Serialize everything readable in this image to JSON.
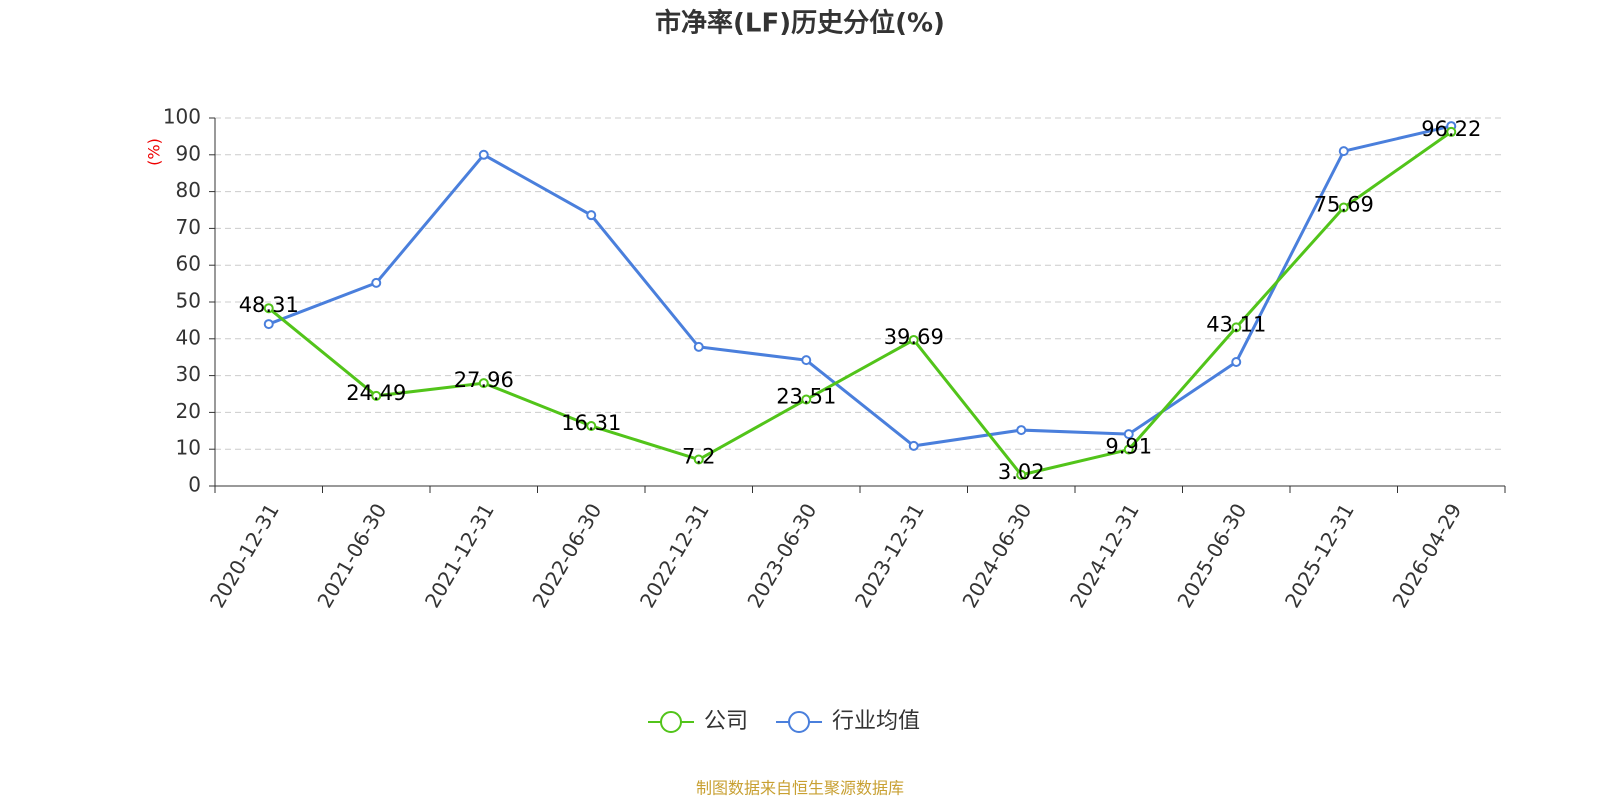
{
  "chart_data": {
    "type": "line",
    "title": "市净率(LF)历史分位(%)",
    "y_label": "(%)",
    "categories": [
      "2020-12-31",
      "2021-06-30",
      "2021-12-31",
      "2022-06-30",
      "2022-12-31",
      "2023-06-30",
      "2023-12-31",
      "2024-06-30",
      "2024-12-31",
      "2025-06-30",
      "2025-12-31",
      "2026-04-29"
    ],
    "series": [
      {
        "name": "公司",
        "color": "#52c41a",
        "show_labels": true,
        "values": [
          48.31,
          24.49,
          27.96,
          16.31,
          7.2,
          23.51,
          39.69,
          3.02,
          9.91,
          43.11,
          75.69,
          96.22
        ]
      },
      {
        "name": "行业均值",
        "color": "#4a7fdc",
        "show_labels": false,
        "values": [
          44.0,
          55.2,
          90.0,
          73.6,
          37.8,
          34.2,
          10.9,
          15.2,
          14.1,
          33.7,
          91.0,
          97.8
        ]
      }
    ],
    "ylim": [
      0,
      100
    ],
    "yticks": [
      0,
      10,
      20,
      30,
      40,
      50,
      60,
      70,
      80,
      90,
      100
    ],
    "grid": true,
    "legend": "bottom",
    "source": "制图数据来自恒生聚源数据库"
  }
}
